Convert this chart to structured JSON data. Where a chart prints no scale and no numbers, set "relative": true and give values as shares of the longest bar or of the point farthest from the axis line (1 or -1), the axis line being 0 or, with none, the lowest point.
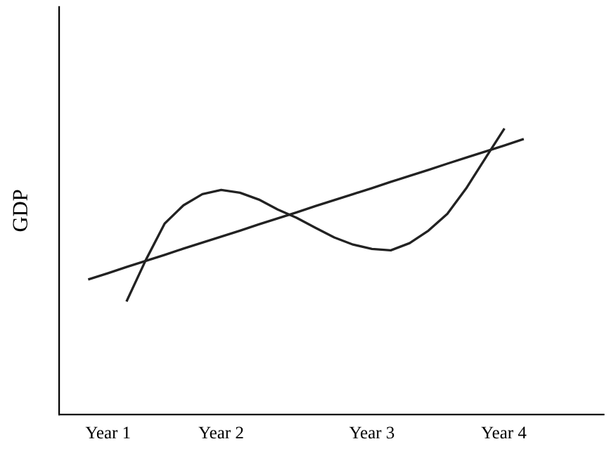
{
  "chart_data": {
    "type": "line",
    "relative": true,
    "ylabel": "GDP",
    "categories": [
      null,
      "Year 1",
      null,
      null,
      null,
      null,
      null,
      "Year 2",
      null,
      null,
      null,
      null,
      null,
      null,
      null,
      "Year 3",
      null,
      null,
      null,
      null,
      null,
      null,
      "Year 4",
      null
    ],
    "series": [
      {
        "color": "#222222",
        "values": [
          0.475,
          0.496,
          0.518,
          0.539,
          0.56,
          0.582,
          0.603,
          0.624,
          0.645,
          0.667,
          0.688,
          0.709,
          0.731,
          0.752,
          0.773,
          0.794,
          0.816,
          0.837,
          0.858,
          0.88,
          0.901,
          0.922,
          0.943,
          0.965
        ]
      },
      {
        "color": "#222222",
        "values": [
          null,
          null,
          0.4,
          0.542,
          0.67,
          0.734,
          0.773,
          0.788,
          0.778,
          0.754,
          0.719,
          0.69,
          0.655,
          0.621,
          0.596,
          0.581,
          0.576,
          0.601,
          0.645,
          0.704,
          0.793,
          0.897,
          1.0,
          null
        ]
      }
    ],
    "grid": false,
    "legend": false,
    "marker": "none",
    "line_style": "solid"
  }
}
